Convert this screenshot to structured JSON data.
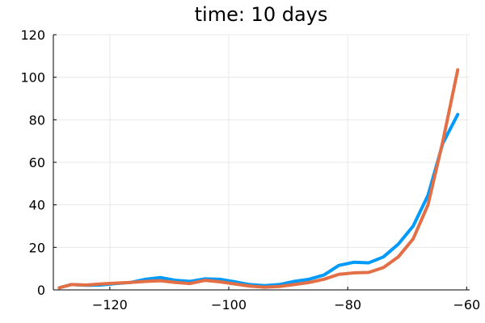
{
  "chart_data": {
    "type": "line",
    "title": "time: 10 days",
    "xlabel": "",
    "ylabel": "",
    "xlim": [
      -129.5,
      -59.5
    ],
    "ylim": [
      0,
      120
    ],
    "xticks": [
      -120,
      -100,
      -80,
      -60
    ],
    "xtick_labels": [
      "−120",
      "−100",
      "−80",
      "−60"
    ],
    "yticks": [
      0,
      20,
      40,
      60,
      80,
      100,
      120
    ],
    "ytick_labels": [
      "0",
      "20",
      "40",
      "60",
      "80",
      "100",
      "120"
    ],
    "grid": true,
    "legend": "none",
    "series": [
      {
        "color": "#009AFA",
        "x": [
          -128.5,
          -126.5,
          -124,
          -121.5,
          -119,
          -116.5,
          -114,
          -111.5,
          -109,
          -106.5,
          -104,
          -101.5,
          -99,
          -96.5,
          -94,
          -91.5,
          -89,
          -86.5,
          -84,
          -81.5,
          -79,
          -76.5,
          -74,
          -71.5,
          -69,
          -66.5,
          -64,
          -61.5
        ],
        "y": [
          1,
          2.5,
          2.2,
          2.3,
          3,
          3.5,
          5,
          5.8,
          4.5,
          4,
          5.2,
          5,
          3.8,
          2.5,
          2,
          2.5,
          4,
          5,
          7,
          11.5,
          13,
          12.7,
          15.5,
          21.5,
          30,
          44.5,
          69,
          82.5
        ]
      },
      {
        "color": "#E26F46",
        "x": [
          -128.5,
          -126.5,
          -124,
          -121.5,
          -119,
          -116.5,
          -114,
          -111.5,
          -109,
          -106.5,
          -104,
          -101.5,
          -99,
          -96.5,
          -94,
          -91.5,
          -89,
          -86.5,
          -84,
          -81.5,
          -79,
          -76.5,
          -74,
          -71.5,
          -69,
          -66.5,
          -64,
          -61.5
        ],
        "y": [
          1,
          2.5,
          2.3,
          2.8,
          3.2,
          3.5,
          4,
          4.3,
          3.5,
          3,
          4.5,
          3.8,
          2.8,
          1.8,
          1.3,
          1.6,
          2.5,
          3.5,
          5,
          7.3,
          8,
          8.2,
          10.5,
          15.5,
          24,
          40,
          70,
          103.5
        ]
      }
    ]
  }
}
